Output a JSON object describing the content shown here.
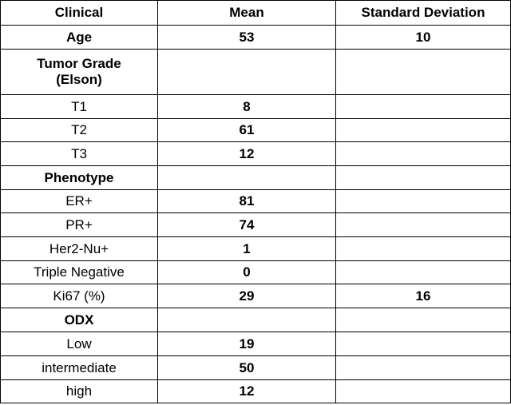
{
  "table": {
    "header": [
      "Clinical",
      "Mean",
      "Standard Deviation"
    ],
    "rows": [
      {
        "label": "Age",
        "mean": 53,
        "sd": 10,
        "bold": true
      },
      {
        "label": "Tumor Grade (Elson)",
        "bold": true
      },
      {
        "label": "T1",
        "mean": 8
      },
      {
        "label": "T2",
        "mean": 61
      },
      {
        "label": "T3",
        "mean": 12
      },
      {
        "label": "Phenotype",
        "bold": true
      },
      {
        "label": "ER+",
        "mean": 81
      },
      {
        "label": "PR+",
        "mean": 74
      },
      {
        "label": "Her2-Nu+",
        "mean": 1
      },
      {
        "label": "Triple Negative",
        "mean": 0
      },
      {
        "label": "Ki67 (%)",
        "mean": 29,
        "sd": 16
      },
      {
        "label": "ODX",
        "bold": true
      },
      {
        "label": "Low",
        "mean": 19
      },
      {
        "label": "intermediate",
        "mean": 50
      },
      {
        "label": "high",
        "mean": 12
      }
    ]
  }
}
